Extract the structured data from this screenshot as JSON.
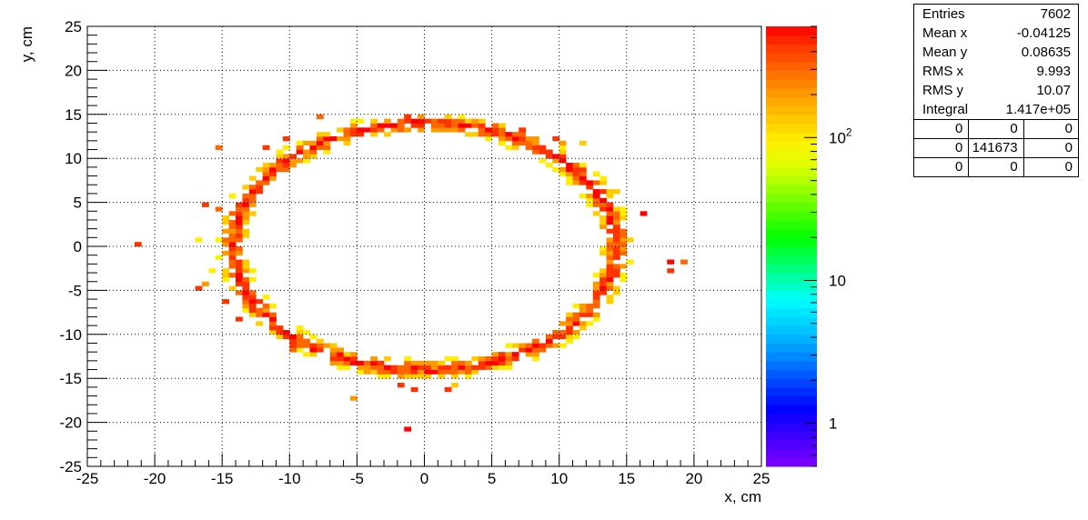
{
  "chart_data": {
    "type": "heatmap",
    "xlabel": "x, cm",
    "ylabel": "y, cm",
    "xlim": [
      -25,
      25
    ],
    "ylim": [
      -25,
      25
    ],
    "grid": true,
    "x_ticks": [
      "-25",
      "-20",
      "-15",
      "-10",
      "-5",
      "0",
      "5",
      "10",
      "15",
      "20",
      "25"
    ],
    "y_ticks": [
      "-25",
      "-20",
      "-15",
      "-10",
      "-5",
      "0",
      "5",
      "10",
      "15",
      "20",
      "25"
    ],
    "z_scale": "log",
    "z_range": [
      0.5,
      600
    ],
    "z_ticks": [
      {
        "value": 1,
        "label": "1"
      },
      {
        "value": 10,
        "label": "10"
      },
      {
        "value": 100,
        "label": "10",
        "sup": "2"
      }
    ],
    "ring": {
      "center": [
        0,
        0
      ],
      "radius_x": 14.2,
      "radius_y": 14.0,
      "thickness": 1.2
    },
    "outliers": [
      {
        "x": -21.2,
        "y": 0.0
      },
      {
        "x": -17.0,
        "y": -4.8
      },
      {
        "x": -16.5,
        "y": -4.3
      },
      {
        "x": -15.3,
        "y": 4.4
      },
      {
        "x": -16.2,
        "y": 4.6
      },
      {
        "x": -16.8,
        "y": 0.8
      },
      {
        "x": -15.8,
        "y": -2.7
      },
      {
        "x": -14.9,
        "y": -6.3
      },
      {
        "x": -14.0,
        "y": -8.4
      },
      {
        "x": -15.1,
        "y": 11.0
      },
      {
        "x": -12.0,
        "y": 11.4
      },
      {
        "x": -10.2,
        "y": 12.0
      },
      {
        "x": -7.9,
        "y": 14.5
      },
      {
        "x": -3.5,
        "y": -14.2
      },
      {
        "x": -5.3,
        "y": -17.2
      },
      {
        "x": -1.2,
        "y": -20.6
      },
      {
        "x": -1.6,
        "y": -15.7
      },
      {
        "x": -0.8,
        "y": -16.3
      },
      {
        "x": 1.5,
        "y": -16.5
      },
      {
        "x": 2.0,
        "y": -16.0
      },
      {
        "x": -1.2,
        "y": 14.9
      },
      {
        "x": 7.2,
        "y": 13.0
      },
      {
        "x": 9.5,
        "y": 12.2
      },
      {
        "x": 10.2,
        "y": 11.5
      },
      {
        "x": 11.9,
        "y": 11.8
      },
      {
        "x": 14.3,
        "y": 6.0
      },
      {
        "x": 16.4,
        "y": 3.6
      },
      {
        "x": 15.2,
        "y": 0.5
      },
      {
        "x": 18.4,
        "y": -2.0
      },
      {
        "x": 19.0,
        "y": -1.8
      },
      {
        "x": 18.0,
        "y": -2.6
      },
      {
        "x": 11.0,
        "y": -10.1
      },
      {
        "x": -10.0,
        "y": -12.0
      },
      {
        "x": -9.8,
        "y": -11.2
      }
    ],
    "stats": {
      "rows": [
        {
          "label": "Entries",
          "value": "7602"
        },
        {
          "label": "Mean x",
          "value": "-0.04125"
        },
        {
          "label": "Mean y",
          "value": "0.08635"
        },
        {
          "label": "RMS x",
          "value": "9.993"
        },
        {
          "label": "RMS y",
          "value": "10.07"
        },
        {
          "label": "Integral",
          "value": "1.417e+05"
        }
      ],
      "grid": [
        [
          "0",
          "0",
          "0"
        ],
        [
          "0",
          "141673",
          "0"
        ],
        [
          "0",
          "0",
          "0"
        ]
      ]
    }
  }
}
